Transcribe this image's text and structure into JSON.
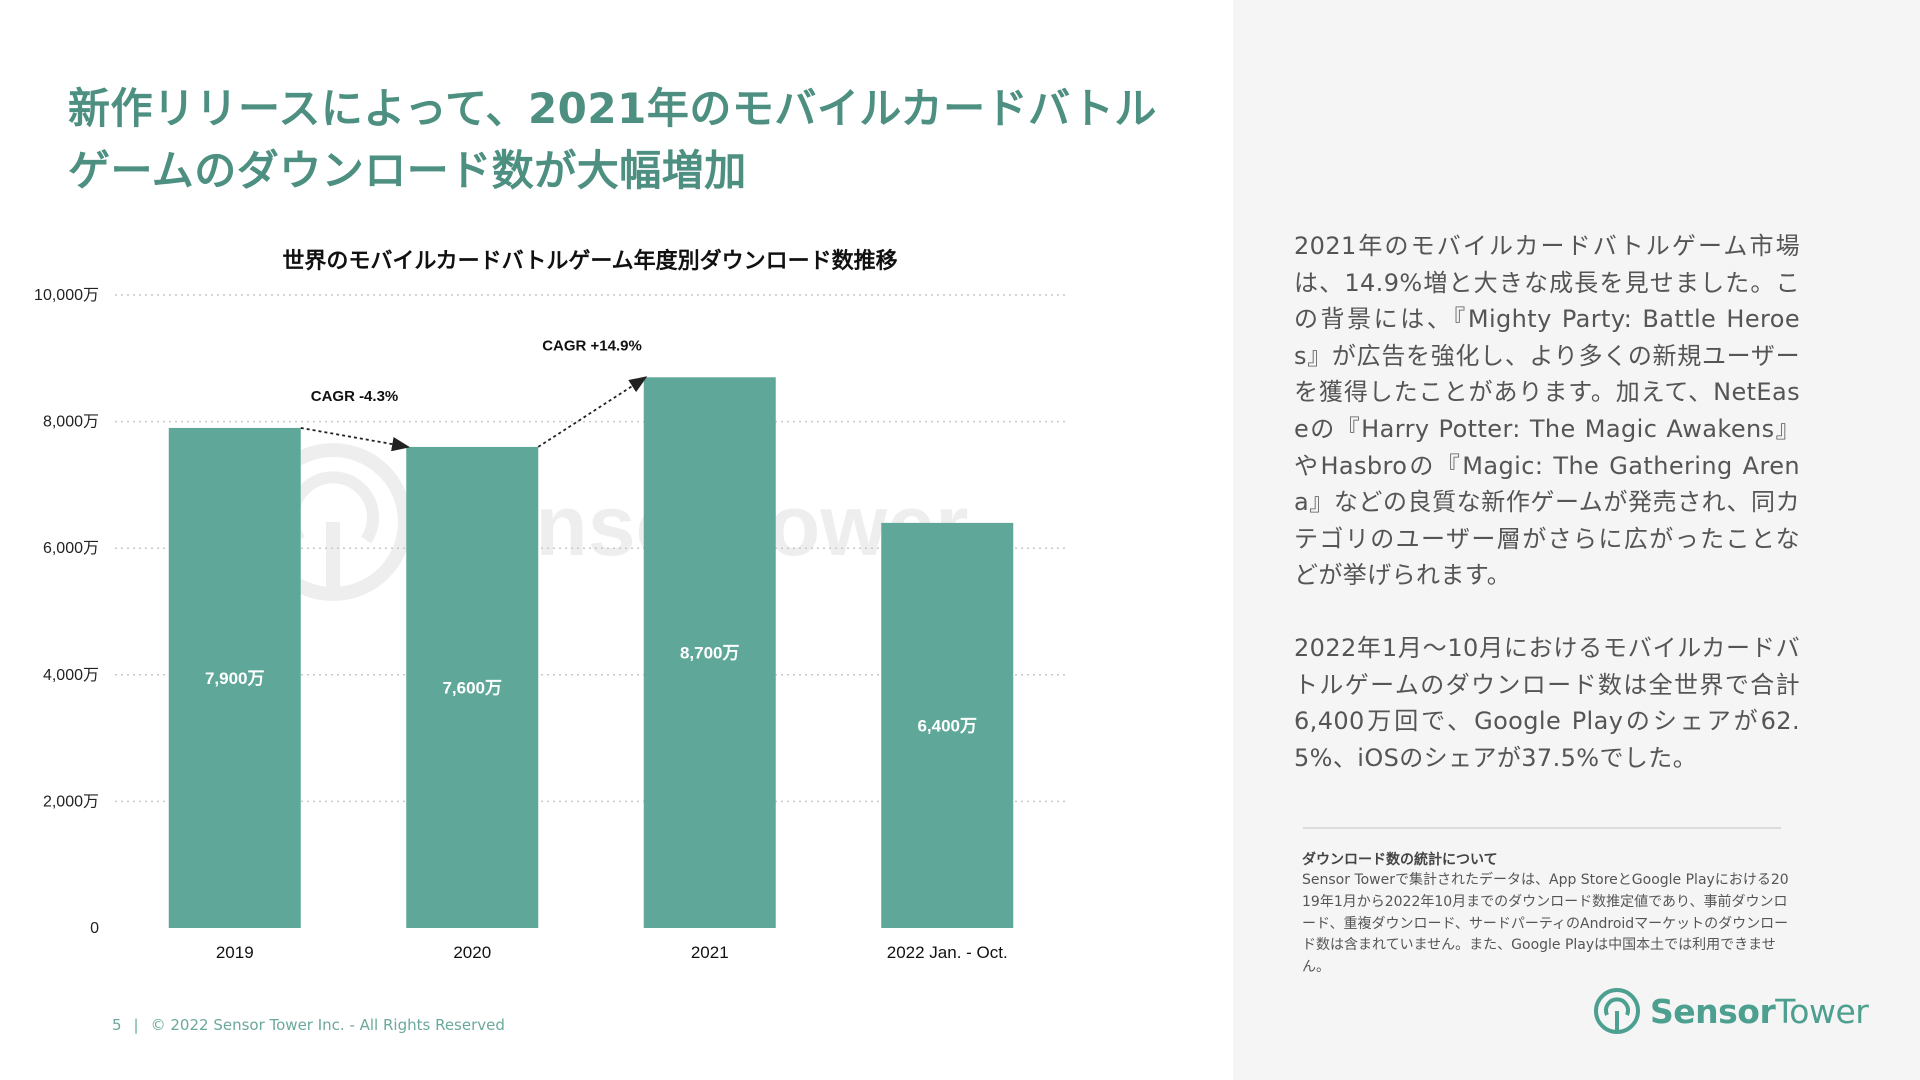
{
  "headline": "新作リリースによって、2021年のモバイルカードバトルゲームのダウンロード数が大幅増加",
  "footer": {
    "page_number": "5",
    "copyright": "© 2022 Sensor Tower Inc. - All Rights Reserved"
  },
  "colors": {
    "bar": "#5fa899",
    "accent": "#4d8f80",
    "sidebar_bg": "#f5f5f5"
  },
  "chart_data": {
    "type": "bar",
    "title": "世界のモバイルカードバトルゲーム年度別ダウンロード数推移",
    "categories": [
      "2019",
      "2020",
      "2021",
      "2022 Jan. - Oct."
    ],
    "values": [
      7900,
      7600,
      8700,
      6400
    ],
    "value_labels": [
      "7,900万",
      "7,600万",
      "8,700万",
      "6,400万"
    ],
    "y_ticks": [
      0,
      2000,
      4000,
      6000,
      8000,
      10000
    ],
    "y_tick_labels": [
      "0",
      "2,000万",
      "4,000万",
      "6,000万",
      "8,000万",
      "10,000万"
    ],
    "ylim": [
      0,
      10000
    ],
    "xlabel": "",
    "ylabel": "",
    "grid": true,
    "annotations": [
      {
        "text": "CAGR -4.3%",
        "from": "2019",
        "to": "2020"
      },
      {
        "text": "CAGR +14.9%",
        "from": "2020",
        "to": "2021"
      }
    ],
    "watermark": "SensorTower"
  },
  "side": {
    "paragraph1": "2021年のモバイルカードバトルゲーム市場は、14.9%増と大きな成長を見せました。この背景には、『Mighty Party: Battle Heroes』が広告を強化し、より多くの新規ユーザーを獲得したことがあります。加えて、NetEaseの『Harry Potter: The Magic Awakens』やHasbroの『Magic: The Gathering Arena』などの良質な新作ゲームが発売され、同カテゴリのユーザー層がさらに広がったことなどが挙げられます。",
    "paragraph2": "2022年1月〜10月におけるモバイルカードバトルゲームのダウンロード数は全世界で合計6,400万回で、Google Playのシェアが62.5%、iOSのシェアが37.5%でした。",
    "note_title": "ダウンロード数の統計について",
    "note_body": "Sensor Towerで集計されたデータは、App StoreとGoogle Playにおける2019年1月から2022年10月までのダウンロード数推定値であり、事前ダウンロード、重複ダウンロード、サードパーティのAndroidマーケットのダウンロード数は含まれていません。また、Google Playは中国本土では利用できません。"
  },
  "logo": {
    "word1": "Sensor",
    "word2": "Tower",
    "icon": "sensor-tower-logo-icon"
  }
}
